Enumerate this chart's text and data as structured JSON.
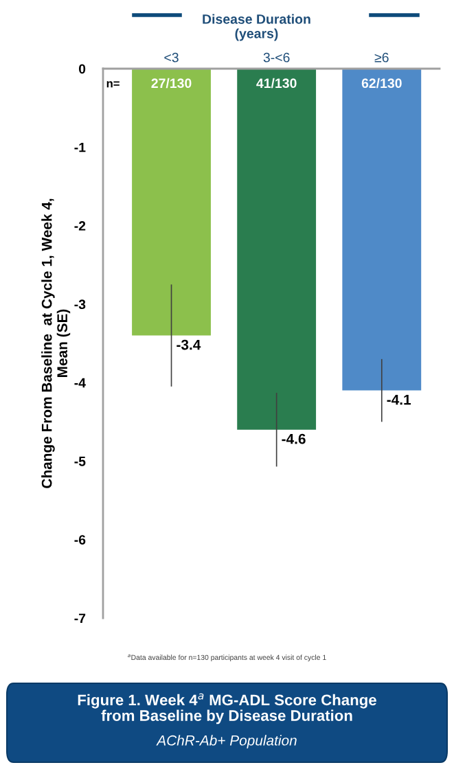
{
  "chart_data": {
    "type": "bar",
    "title": "Figure 1. Week 4$^{a}$ MG-ADL Score Change\nfrom Baseline by Disease Duration",
    "subtitle": "AChR-Ab+ Population",
    "legend_title": "Disease Duration\n(years)",
    "ylabel": "Change From Baseline  at Cycle 1, Week 4,\nMean (SE)",
    "categories": [
      "<3",
      "3-<6",
      "≥6"
    ],
    "values": [
      -3.4,
      -4.6,
      -4.1
    ],
    "colors": [
      "#8cc04c",
      "#2a7d4f",
      "#4f8ac8"
    ],
    "errors": [
      0.65,
      0.47,
      0.4
    ],
    "value_labels": [
      "-3.4",
      "-4.6",
      "-4.1"
    ],
    "annotations": [
      "n=",
      "27/130",
      "41/130",
      "62/130",
      "$^{a}$Data available for n=130 participants at week 4 visit of cycle 1"
    ],
    "ylim": [
      -7,
      0
    ],
    "yticks": [
      -7,
      -6,
      -5,
      -4,
      -3,
      -2,
      -1,
      0
    ],
    "grid": false,
    "legend": false
  }
}
